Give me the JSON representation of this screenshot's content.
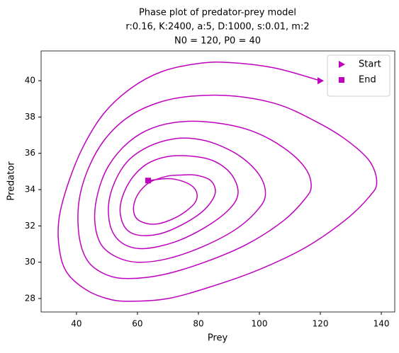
{
  "chart_data": {
    "type": "phase",
    "title": [
      "Phase plot of predator-prey model",
      "r:0.16, K:2400, a:5, D:1000, s:0.01, m:2",
      "N0 = 120, P0 = 40"
    ],
    "xlabel": "Prey",
    "ylabel": "Predator",
    "xlim": [
      28.4,
      144.4
    ],
    "ylim": [
      27.26,
      41.64
    ],
    "xticks": [
      40,
      60,
      80,
      100,
      120,
      140
    ],
    "yticks": [
      28,
      30,
      32,
      34,
      36,
      38,
      40
    ],
    "color": "#bf00bf",
    "legend": "upper right",
    "trajectory": {
      "x": [
        120,
        105,
        90,
        80,
        68,
        58,
        49,
        42,
        37,
        34.2,
        34.5,
        37,
        43,
        50,
        57,
        70,
        85,
        100,
        115,
        128,
        136,
        138.5,
        136,
        128,
        118,
        106,
        92,
        78,
        67,
        57,
        49,
        43.5,
        40.7,
        41,
        44,
        50,
        57,
        68,
        82,
        96,
        108,
        115,
        117,
        115,
        108,
        98,
        87,
        75,
        65,
        57,
        50.5,
        47,
        46,
        48,
        53,
        60,
        70,
        82,
        93,
        100,
        102,
        100,
        94,
        86,
        79,
        72,
        64,
        57,
        52.5,
        50.5,
        51.5,
        55.5,
        62,
        72,
        82,
        90,
        93,
        91,
        86,
        80,
        71,
        64,
        59,
        55.5,
        54.3,
        56,
        60,
        67,
        75,
        82,
        85.5,
        84,
        79,
        74,
        70,
        64,
        60,
        58.7,
        60.5,
        66,
        73,
        78.5,
        79.5,
        77,
        71,
        63.5
      ],
      "y": [
        40,
        40.7,
        41.0,
        40.95,
        40.5,
        39.6,
        38.2,
        36.3,
        34.2,
        32.3,
        30.6,
        29.4,
        28.5,
        28.0,
        27.85,
        28.0,
        28.7,
        29.6,
        30.8,
        32.3,
        33.6,
        34.4,
        35.6,
        36.8,
        37.8,
        38.7,
        39.15,
        39.15,
        38.8,
        38.0,
        36.7,
        35.0,
        33.2,
        31.3,
        30.0,
        29.3,
        29.1,
        29.3,
        30.0,
        31.0,
        32.3,
        33.5,
        34.2,
        35.2,
        36.3,
        37.2,
        37.65,
        37.75,
        37.4,
        36.6,
        35.3,
        33.8,
        32.3,
        31.0,
        30.3,
        30.0,
        30.2,
        30.9,
        31.9,
        33.0,
        33.8,
        34.8,
        35.8,
        36.5,
        36.8,
        36.8,
        36.4,
        35.6,
        34.4,
        33.1,
        31.8,
        31.0,
        30.75,
        31.1,
        31.9,
        32.9,
        33.8,
        34.8,
        35.5,
        35.8,
        35.85,
        35.5,
        34.8,
        33.8,
        32.8,
        31.9,
        31.5,
        31.55,
        32.1,
        32.9,
        33.8,
        34.5,
        34.8,
        34.8,
        34.75,
        34.4,
        33.7,
        32.9,
        32.3,
        32.1,
        32.5,
        33.2,
        33.8,
        34.3,
        34.6,
        34.5
      ]
    },
    "markers": [
      {
        "name": "Start",
        "symbol": "triangle",
        "x": 120,
        "y": 40
      },
      {
        "name": "End",
        "symbol": "square",
        "x": 63.5,
        "y": 34.5
      }
    ]
  }
}
